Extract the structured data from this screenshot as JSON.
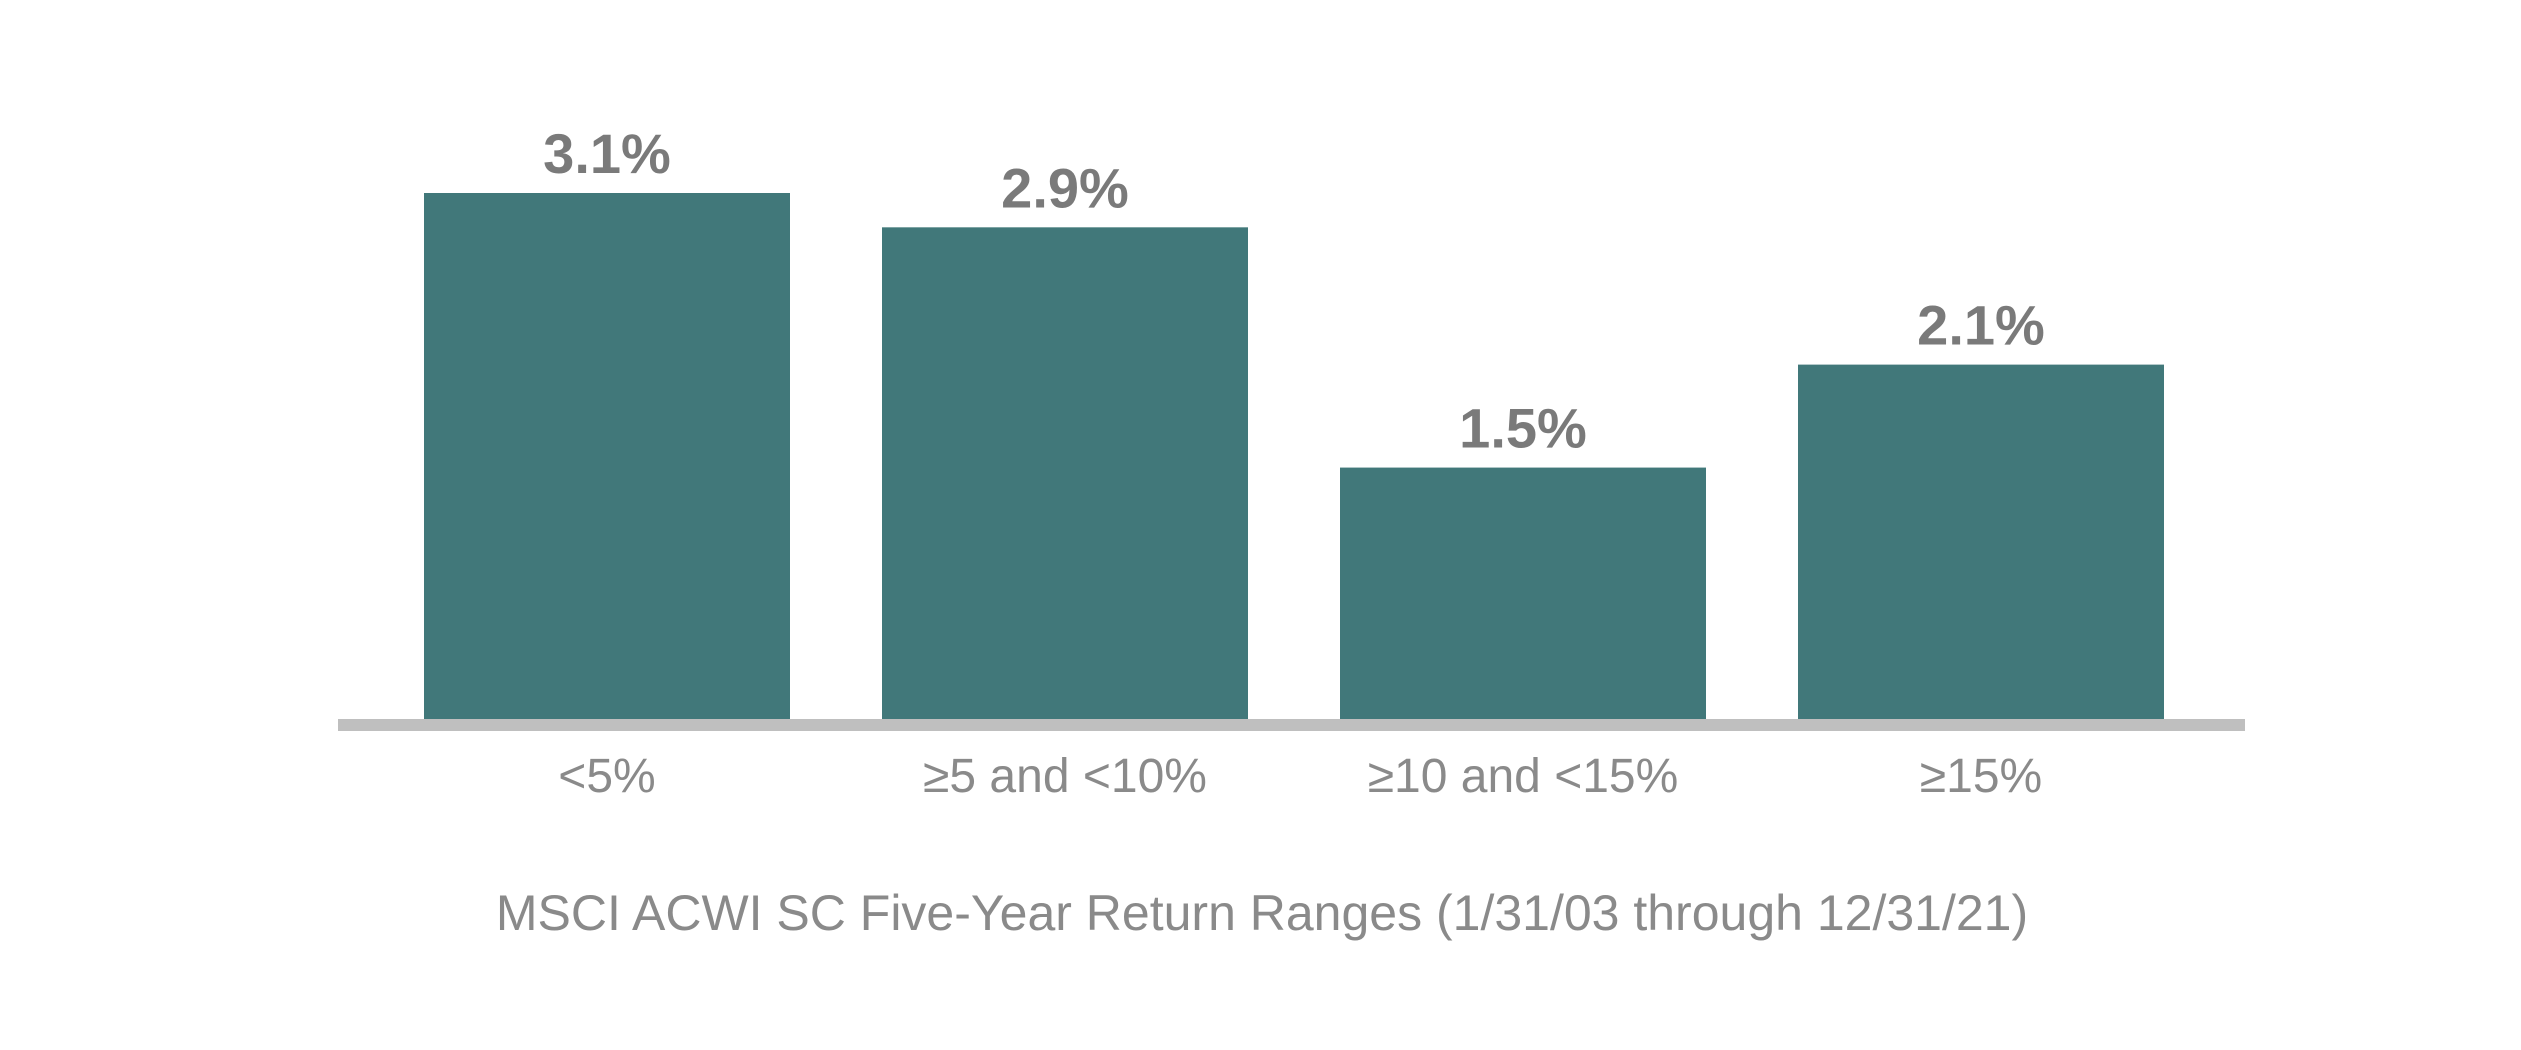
{
  "chart_data": {
    "type": "bar",
    "categories": [
      "<5%",
      "≥5 and <10%",
      "≥10 and <15%",
      "≥15%"
    ],
    "values": [
      3.1,
      2.9,
      1.5,
      2.1
    ],
    "data_labels": [
      "3.1%",
      "2.9%",
      "1.5%",
      "2.1%"
    ],
    "title": "",
    "xlabel": "MSCI ACWI SC Five-Year Return Ranges (1/31/03 through 12/31/21)",
    "ylabel": "",
    "ylim": [
      0,
      3.1
    ],
    "grid": false,
    "legend": "none",
    "colors": {
      "bar": "#41787a",
      "axis": "#bfbfbf",
      "data_label": "#7a7a7a",
      "tick_label": "#8a8a8a",
      "axis_title": "#8a8a8a"
    }
  }
}
